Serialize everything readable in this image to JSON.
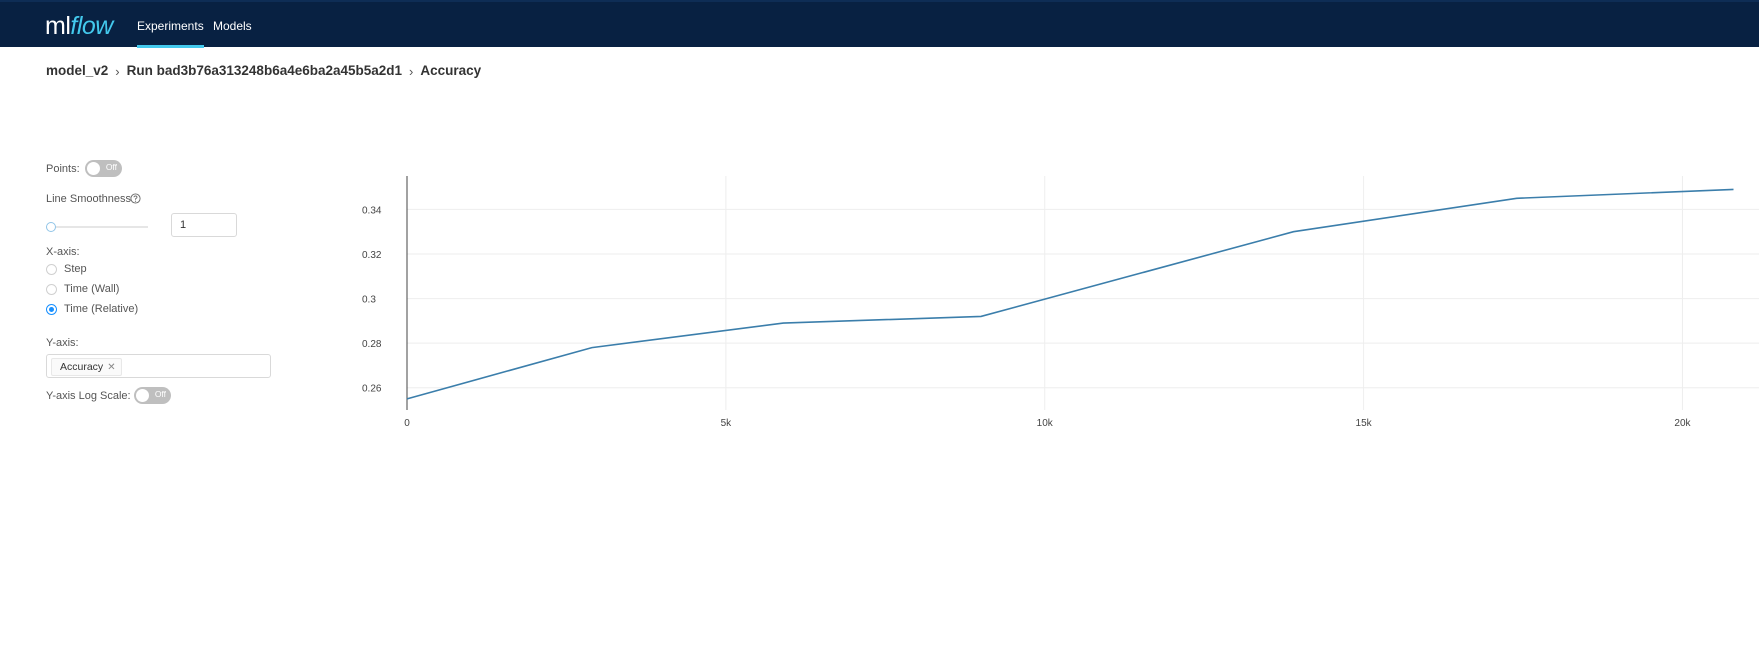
{
  "header": {
    "logo_ml": "ml",
    "logo_flow": "flow",
    "tabs": [
      {
        "label": "Experiments",
        "active": true
      },
      {
        "label": "Models",
        "active": false
      }
    ],
    "bg_color": "#082142",
    "accent_color": "#43c9ed"
  },
  "breadcrumb": {
    "experiment": "model_v2",
    "run": "Run bad3b76a313248b6a4e6ba2a45b5a2d1",
    "metric": "Accuracy",
    "separator": "›"
  },
  "controls": {
    "points_label": "Points:",
    "points_toggle": "Off",
    "smoothness_label": "Line Smoothness",
    "smoothness_help_icon": "question-circle-icon",
    "smoothness_value": "1",
    "xaxis_label": "X-axis:",
    "xaxis_options": [
      {
        "label": "Step",
        "checked": false
      },
      {
        "label": "Time (Wall)",
        "checked": false
      },
      {
        "label": "Time (Relative)",
        "checked": true
      }
    ],
    "yaxis_label": "Y-axis:",
    "yaxis_selected": "Accuracy",
    "yaxis_remove_icon": "close-icon",
    "logscale_label": "Y-axis Log Scale:",
    "logscale_toggle": "Off"
  },
  "chart_data": {
    "type": "line",
    "title": "",
    "xlabel": "",
    "ylabel": "",
    "x_tick_labels": [
      "0",
      "5k",
      "10k",
      "15k",
      "20k"
    ],
    "x_ticks": [
      0,
      5000,
      10000,
      15000,
      20000
    ],
    "y_tick_labels": [
      "0.26",
      "0.28",
      "0.3",
      "0.32",
      "0.34"
    ],
    "y_ticks": [
      0.26,
      0.28,
      0.3,
      0.32,
      0.34
    ],
    "xlim": [
      0,
      21200
    ],
    "ylim": [
      0.25,
      0.355
    ],
    "grid": true,
    "series": [
      {
        "color": "#3b7eab",
        "x": [
          0,
          2900,
          5900,
          9000,
          13900,
          17400,
          20800
        ],
        "y": [
          0.255,
          0.278,
          0.289,
          0.292,
          0.33,
          0.345,
          0.349
        ]
      }
    ]
  }
}
